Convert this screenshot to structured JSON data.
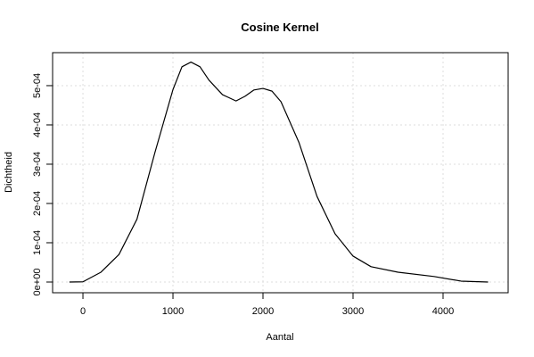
{
  "chart_data": {
    "type": "line",
    "title": "Cosine Kernel",
    "x_label": "Aantal",
    "y_label": "Dichtheid",
    "x": [
      -150,
      0,
      200,
      400,
      600,
      800,
      1000,
      1100,
      1200,
      1300,
      1400,
      1550,
      1700,
      1800,
      1900,
      2000,
      2100,
      2200,
      2400,
      2600,
      2800,
      3000,
      3200,
      3500,
      3900,
      4200,
      4500
    ],
    "values": [
      0,
      5e-07,
      2.5e-05,
      7e-05,
      0.00016,
      0.00033,
      0.00049,
      0.000548,
      0.00056,
      0.000548,
      0.000514,
      0.000477,
      0.000461,
      0.000473,
      0.000489,
      0.000493,
      0.000486,
      0.000459,
      0.000355,
      0.000218,
      0.000123,
      6.6e-05,
      3.9e-05,
      2.5e-05,
      1.4e-05,
      2.3e-06,
      0
    ],
    "color": "#000000",
    "xlim": [
      -337,
      4723
    ],
    "ylim": [
      -2.73e-05,
      0.000584
    ],
    "xticks": [
      0,
      1000,
      2000,
      3000,
      4000
    ],
    "yticks": [
      {
        "value": 0,
        "label": "0e+00"
      },
      {
        "value": 0.0001,
        "label": "1e-04"
      },
      {
        "value": 0.0002,
        "label": "2e-04"
      },
      {
        "value": 0.0003,
        "label": "3e-04"
      },
      {
        "value": 0.0004,
        "label": "4e-04"
      },
      {
        "value": 0.0005,
        "label": "5e-04"
      }
    ],
    "grid": true
  }
}
